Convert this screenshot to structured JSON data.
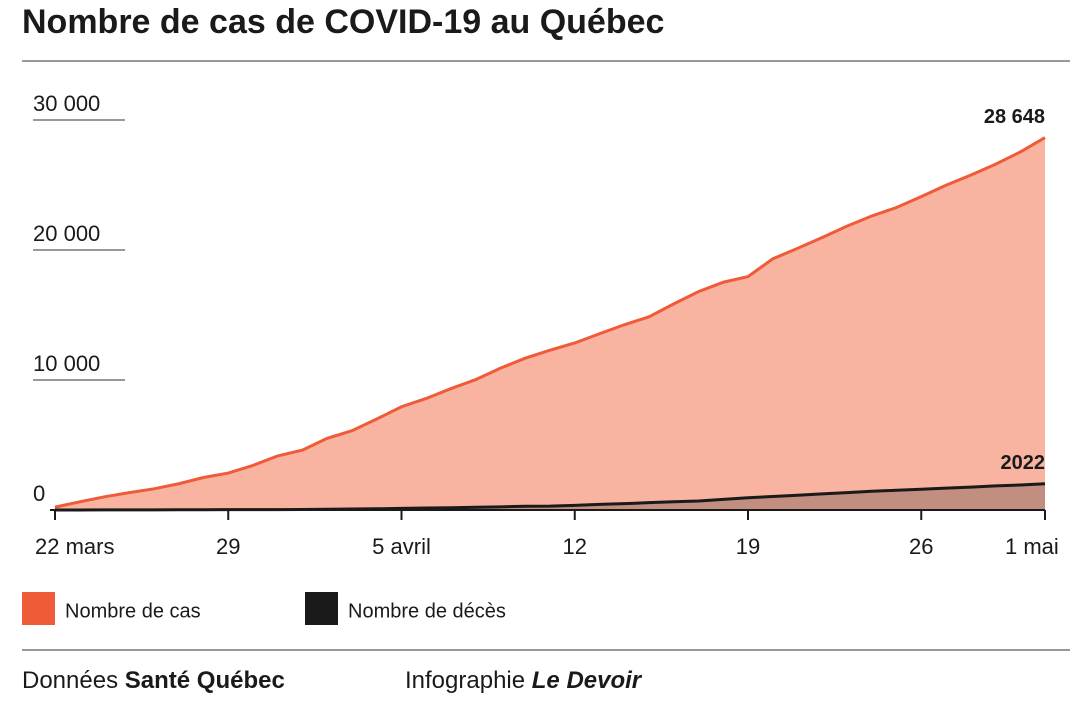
{
  "chart_data": {
    "type": "area",
    "title": "Nombre de cas de COVID-19 au Québec",
    "categories": [
      "22 mars",
      null,
      null,
      null,
      null,
      null,
      null,
      "29",
      null,
      null,
      null,
      null,
      null,
      null,
      "5 avril",
      null,
      null,
      null,
      null,
      null,
      null,
      "12",
      null,
      null,
      null,
      null,
      null,
      null,
      "19",
      null,
      null,
      null,
      null,
      null,
      null,
      "26",
      null,
      null,
      null,
      null,
      "1 mai"
    ],
    "series": [
      {
        "name": "Nombre de cas",
        "color": "#ef5a38",
        "fill": "#f8b4a1",
        "values": [
          221,
          628,
          1013,
          1339,
          1629,
          2021,
          2498,
          2840,
          3430,
          4162,
          4611,
          5518,
          6101,
          6997,
          7944,
          8580,
          9340,
          10031,
          10912,
          11677,
          12292,
          12846,
          13557,
          14248,
          14860,
          15857,
          16798,
          17521,
          17950,
          19319,
          20126,
          20965,
          21838,
          22616,
          23267,
          24107,
          24982,
          25757,
          26594,
          27538,
          28648
        ],
        "value_labels": [
          null,
          null,
          null,
          null,
          null,
          null,
          null,
          null,
          null,
          null,
          null,
          null,
          null,
          null,
          null,
          null,
          null,
          null,
          null,
          null,
          null,
          null,
          null,
          null,
          null,
          null,
          null,
          null,
          null,
          null,
          null,
          null,
          null,
          null,
          null,
          null,
          null,
          null,
          null,
          null,
          "28 648"
        ]
      },
      {
        "name": "Nombre de décès",
        "color": "#1a1a1a",
        "fill": "#1a1a1a",
        "values": [
          4,
          4,
          6,
          8,
          12,
          18,
          22,
          25,
          31,
          33,
          39,
          61,
          75,
          94,
          121,
          150,
          175,
          216,
          241,
          289,
          295,
          360,
          435,
          487,
          564,
          630,
          688,
          818,
          939,
          1041,
          1134,
          1243,
          1340,
          1446,
          1515,
          1599,
          1682,
          1761,
          1859,
          1920,
          2022
        ],
        "value_labels": [
          null,
          null,
          null,
          null,
          null,
          null,
          null,
          null,
          null,
          null,
          null,
          null,
          null,
          null,
          null,
          null,
          null,
          null,
          null,
          null,
          null,
          null,
          null,
          null,
          null,
          null,
          null,
          null,
          null,
          null,
          null,
          null,
          null,
          null,
          null,
          null,
          null,
          null,
          null,
          null,
          "2022"
        ]
      }
    ],
    "ylim": [
      0,
      30000
    ],
    "yticks": [
      0,
      {
        "value": 10000,
        "label": "10 000"
      },
      {
        "value": 20000,
        "label": "20 000"
      },
      {
        "value": 30000,
        "label": "30 000"
      }
    ],
    "source_label": "Données",
    "source": "Santé Québec",
    "credit_label": "Infographie",
    "credit": "Le Devoir"
  }
}
